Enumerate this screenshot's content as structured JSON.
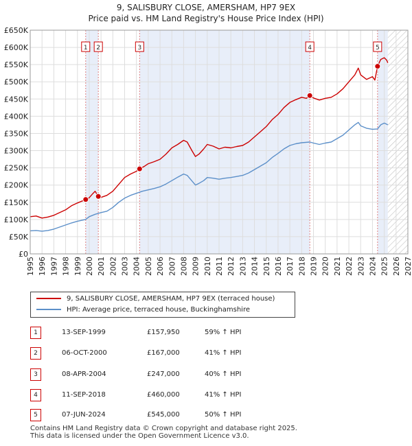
{
  "titles": {
    "line1": "9, SALISBURY CLOSE, AMERSHAM, HP7 9EX",
    "line2": "Price paid vs. HM Land Registry's House Price Index (HPI)"
  },
  "legend": {
    "red_label": "9, SALISBURY CLOSE, AMERSHAM, HP7 9EX (terraced house)",
    "blue_label": "HPI: Average price, terraced house, Buckinghamshire"
  },
  "colors": {
    "red": "#cc0000",
    "blue": "#5b8fc9",
    "band": "#e8eef9",
    "hatch": "#c0c0c0",
    "dash": "#e08080"
  },
  "sales": [
    {
      "num": "1",
      "date": "13-SEP-1999",
      "price": "£157,950",
      "hpi": "59% ↑ HPI"
    },
    {
      "num": "2",
      "date": "06-OCT-2000",
      "price": "£167,000",
      "hpi": "41% ↑ HPI"
    },
    {
      "num": "3",
      "date": "08-APR-2004",
      "price": "£247,000",
      "hpi": "40% ↑ HPI"
    },
    {
      "num": "4",
      "date": "11-SEP-2018",
      "price": "£460,000",
      "hpi": "41% ↑ HPI"
    },
    {
      "num": "5",
      "date": "07-JUN-2024",
      "price": "£545,000",
      "hpi": "50% ↑ HPI"
    }
  ],
  "footer": {
    "line1": "Contains HM Land Registry data © Crown copyright and database right 2025.",
    "line2": "This data is licensed under the Open Government Licence v3.0."
  },
  "chart_data": {
    "type": "line",
    "xlim": [
      1995,
      2027
    ],
    "ylim": [
      0,
      650000
    ],
    "x_ticks": [
      1995,
      1996,
      1997,
      1998,
      1999,
      2000,
      2001,
      2002,
      2003,
      2004,
      2005,
      2006,
      2007,
      2008,
      2009,
      2010,
      2011,
      2012,
      2013,
      2014,
      2015,
      2016,
      2017,
      2018,
      2019,
      2020,
      2021,
      2022,
      2023,
      2024,
      2025,
      2026,
      2027
    ],
    "y_ticks": [
      0,
      50000,
      100000,
      150000,
      200000,
      250000,
      300000,
      350000,
      400000,
      450000,
      500000,
      550000,
      600000,
      650000
    ],
    "y_tick_labels": [
      "£0",
      "£50K",
      "£100K",
      "£150K",
      "£200K",
      "£250K",
      "£300K",
      "£350K",
      "£400K",
      "£450K",
      "£500K",
      "£550K",
      "£600K",
      "£650K"
    ],
    "shaded_bands": [
      [
        1999.7,
        2000.77
      ],
      [
        2004.27,
        2018.69
      ],
      [
        2024.43,
        2025.3
      ]
    ],
    "forecast_from": 2025.3,
    "series": [
      {
        "name": "9, SALISBURY CLOSE, AMERSHAM, HP7 9EX (terraced house)",
        "color": "red",
        "points": [
          [
            1995,
            108000
          ],
          [
            1995.5,
            110000
          ],
          [
            1996,
            104000
          ],
          [
            1996.5,
            107000
          ],
          [
            1997,
            112000
          ],
          [
            1997.5,
            120000
          ],
          [
            1998,
            128000
          ],
          [
            1998.5,
            140000
          ],
          [
            1999,
            148000
          ],
          [
            1999.7,
            157950
          ],
          [
            2000,
            163000
          ],
          [
            2000.3,
            175000
          ],
          [
            2000.5,
            182000
          ],
          [
            2000.77,
            167000
          ],
          [
            2001,
            164000
          ],
          [
            2001.5,
            170000
          ],
          [
            2002,
            182000
          ],
          [
            2002.5,
            202000
          ],
          [
            2003,
            222000
          ],
          [
            2003.5,
            232000
          ],
          [
            2004,
            240000
          ],
          [
            2004.27,
            247000
          ],
          [
            2004.7,
            255000
          ],
          [
            2005,
            262000
          ],
          [
            2005.5,
            268000
          ],
          [
            2006,
            275000
          ],
          [
            2006.5,
            290000
          ],
          [
            2007,
            308000
          ],
          [
            2007.5,
            318000
          ],
          [
            2008,
            330000
          ],
          [
            2008.3,
            325000
          ],
          [
            2008.7,
            300000
          ],
          [
            2009,
            283000
          ],
          [
            2009.3,
            290000
          ],
          [
            2009.7,
            305000
          ],
          [
            2010,
            318000
          ],
          [
            2010.5,
            313000
          ],
          [
            2011,
            305000
          ],
          [
            2011.5,
            310000
          ],
          [
            2012,
            308000
          ],
          [
            2012.5,
            312000
          ],
          [
            2013,
            315000
          ],
          [
            2013.5,
            325000
          ],
          [
            2014,
            340000
          ],
          [
            2014.5,
            355000
          ],
          [
            2015,
            370000
          ],
          [
            2015.5,
            390000
          ],
          [
            2016,
            405000
          ],
          [
            2016.5,
            425000
          ],
          [
            2017,
            440000
          ],
          [
            2017.5,
            448000
          ],
          [
            2018,
            455000
          ],
          [
            2018.4,
            452000
          ],
          [
            2018.69,
            460000
          ],
          [
            2019,
            453000
          ],
          [
            2019.5,
            447000
          ],
          [
            2020,
            452000
          ],
          [
            2020.5,
            455000
          ],
          [
            2021,
            465000
          ],
          [
            2021.5,
            480000
          ],
          [
            2022,
            500000
          ],
          [
            2022.5,
            520000
          ],
          [
            2022.8,
            540000
          ],
          [
            2023,
            520000
          ],
          [
            2023.5,
            507000
          ],
          [
            2024,
            515000
          ],
          [
            2024.2,
            505000
          ],
          [
            2024.43,
            545000
          ],
          [
            2024.7,
            565000
          ],
          [
            2025,
            570000
          ],
          [
            2025.2,
            563000
          ],
          [
            2025.3,
            555000
          ]
        ]
      },
      {
        "name": "HPI: Average price, terraced house, Buckinghamshire",
        "color": "blue",
        "points": [
          [
            1995,
            67000
          ],
          [
            1995.5,
            68000
          ],
          [
            1996,
            66000
          ],
          [
            1996.5,
            68000
          ],
          [
            1997,
            72000
          ],
          [
            1997.5,
            78000
          ],
          [
            1998,
            84000
          ],
          [
            1998.5,
            90000
          ],
          [
            1999,
            95000
          ],
          [
            1999.7,
            100000
          ],
          [
            2000,
            108000
          ],
          [
            2000.5,
            115000
          ],
          [
            2001,
            120000
          ],
          [
            2001.5,
            124000
          ],
          [
            2002,
            135000
          ],
          [
            2002.5,
            150000
          ],
          [
            2003,
            162000
          ],
          [
            2003.5,
            170000
          ],
          [
            2004,
            176000
          ],
          [
            2004.5,
            182000
          ],
          [
            2005,
            186000
          ],
          [
            2005.5,
            190000
          ],
          [
            2006,
            195000
          ],
          [
            2006.5,
            203000
          ],
          [
            2007,
            213000
          ],
          [
            2007.5,
            223000
          ],
          [
            2008,
            232000
          ],
          [
            2008.3,
            228000
          ],
          [
            2008.7,
            212000
          ],
          [
            2009,
            200000
          ],
          [
            2009.3,
            205000
          ],
          [
            2009.7,
            213000
          ],
          [
            2010,
            222000
          ],
          [
            2010.5,
            220000
          ],
          [
            2011,
            217000
          ],
          [
            2011.5,
            220000
          ],
          [
            2012,
            222000
          ],
          [
            2012.5,
            225000
          ],
          [
            2013,
            228000
          ],
          [
            2013.5,
            235000
          ],
          [
            2014,
            245000
          ],
          [
            2014.5,
            255000
          ],
          [
            2015,
            265000
          ],
          [
            2015.5,
            280000
          ],
          [
            2016,
            292000
          ],
          [
            2016.5,
            305000
          ],
          [
            2017,
            315000
          ],
          [
            2017.5,
            320000
          ],
          [
            2018,
            323000
          ],
          [
            2018.69,
            325000
          ],
          [
            2019,
            322000
          ],
          [
            2019.5,
            318000
          ],
          [
            2020,
            322000
          ],
          [
            2020.5,
            325000
          ],
          [
            2021,
            335000
          ],
          [
            2021.5,
            345000
          ],
          [
            2022,
            360000
          ],
          [
            2022.5,
            375000
          ],
          [
            2022.8,
            382000
          ],
          [
            2023,
            372000
          ],
          [
            2023.5,
            365000
          ],
          [
            2024,
            362000
          ],
          [
            2024.43,
            363000
          ],
          [
            2024.7,
            375000
          ],
          [
            2025,
            380000
          ],
          [
            2025.3,
            375000
          ]
        ]
      }
    ],
    "sales_points": [
      {
        "label": "1",
        "x": 1999.7,
        "y": 157950,
        "label_y": 600000
      },
      {
        "label": "2",
        "x": 2000.77,
        "y": 167000,
        "label_y": 600000
      },
      {
        "label": "3",
        "x": 2004.27,
        "y": 247000,
        "label_y": 600000
      },
      {
        "label": "4",
        "x": 2018.69,
        "y": 460000,
        "label_y": 600000
      },
      {
        "label": "5",
        "x": 2024.43,
        "y": 545000,
        "label_y": 600000
      }
    ]
  }
}
